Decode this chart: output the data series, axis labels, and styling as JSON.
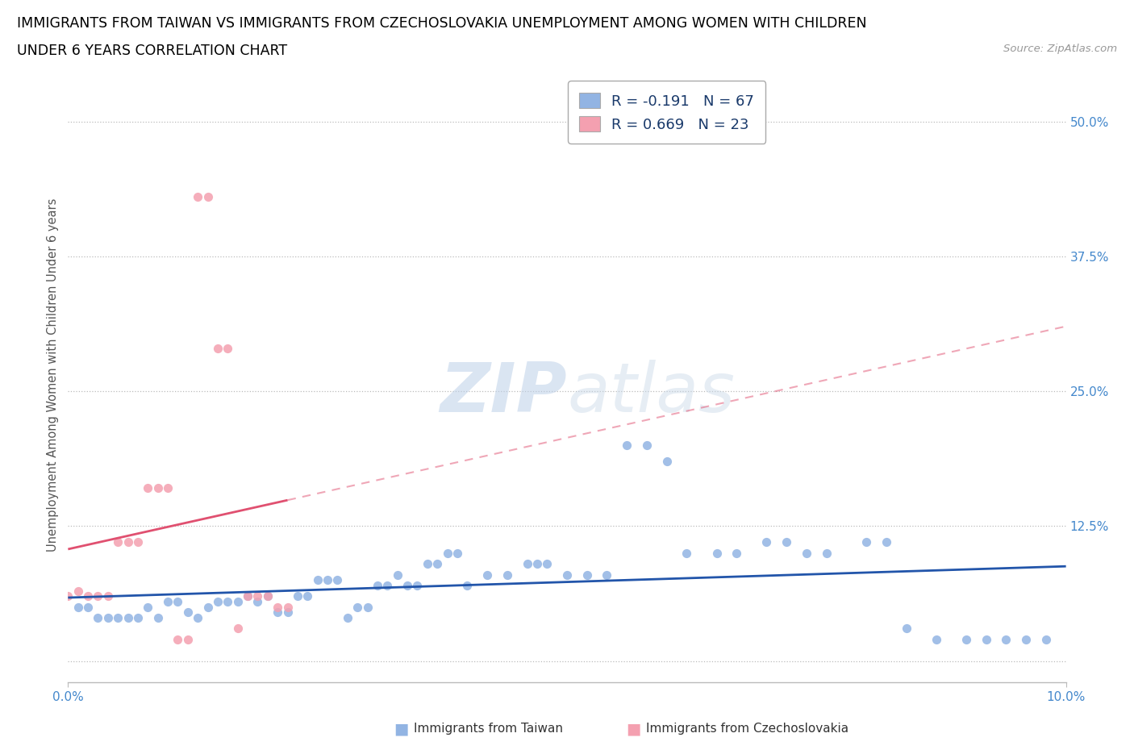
{
  "title_line1": "IMMIGRANTS FROM TAIWAN VS IMMIGRANTS FROM CZECHOSLOVAKIA UNEMPLOYMENT AMONG WOMEN WITH CHILDREN",
  "title_line2": "UNDER 6 YEARS CORRELATION CHART",
  "source": "Source: ZipAtlas.com",
  "ylabel": "Unemployment Among Women with Children Under 6 years",
  "xlim": [
    0.0,
    0.1
  ],
  "ylim": [
    -0.02,
    0.55
  ],
  "yticks": [
    0.0,
    0.125,
    0.25,
    0.375,
    0.5
  ],
  "ytick_labels": [
    "",
    "12.5%",
    "25.0%",
    "37.5%",
    "50.0%"
  ],
  "xtick_vals": [
    0.0,
    0.1
  ],
  "xtick_labels": [
    "0.0%",
    "10.0%"
  ],
  "taiwan_R": -0.191,
  "taiwan_N": 67,
  "czech_R": 0.669,
  "czech_N": 23,
  "taiwan_color": "#92b4e3",
  "czech_color": "#f4a0b0",
  "taiwan_line_color": "#2255aa",
  "czech_line_color": "#e05070",
  "taiwan_x": [
    0.001,
    0.002,
    0.003,
    0.004,
    0.005,
    0.006,
    0.007,
    0.008,
    0.009,
    0.01,
    0.011,
    0.012,
    0.013,
    0.014,
    0.015,
    0.016,
    0.017,
    0.018,
    0.019,
    0.02,
    0.021,
    0.022,
    0.023,
    0.024,
    0.025,
    0.026,
    0.027,
    0.028,
    0.029,
    0.03,
    0.031,
    0.032,
    0.033,
    0.034,
    0.035,
    0.036,
    0.037,
    0.038,
    0.039,
    0.04,
    0.042,
    0.044,
    0.046,
    0.047,
    0.048,
    0.05,
    0.052,
    0.054,
    0.056,
    0.058,
    0.06,
    0.062,
    0.065,
    0.067,
    0.07,
    0.072,
    0.074,
    0.076,
    0.08,
    0.082,
    0.084,
    0.087,
    0.09,
    0.092,
    0.094,
    0.096,
    0.098
  ],
  "taiwan_y": [
    0.05,
    0.05,
    0.04,
    0.04,
    0.04,
    0.04,
    0.04,
    0.05,
    0.04,
    0.055,
    0.055,
    0.045,
    0.04,
    0.05,
    0.055,
    0.055,
    0.055,
    0.06,
    0.055,
    0.06,
    0.045,
    0.045,
    0.06,
    0.06,
    0.075,
    0.075,
    0.075,
    0.04,
    0.05,
    0.05,
    0.07,
    0.07,
    0.08,
    0.07,
    0.07,
    0.09,
    0.09,
    0.1,
    0.1,
    0.07,
    0.08,
    0.08,
    0.09,
    0.09,
    0.09,
    0.08,
    0.08,
    0.08,
    0.2,
    0.2,
    0.185,
    0.1,
    0.1,
    0.1,
    0.11,
    0.11,
    0.1,
    0.1,
    0.11,
    0.11,
    0.03,
    0.02,
    0.02,
    0.02,
    0.02,
    0.02,
    0.02
  ],
  "czech_x": [
    0.0,
    0.001,
    0.002,
    0.003,
    0.004,
    0.005,
    0.006,
    0.007,
    0.008,
    0.009,
    0.01,
    0.011,
    0.012,
    0.013,
    0.014,
    0.015,
    0.016,
    0.017,
    0.018,
    0.019,
    0.02,
    0.021,
    0.022
  ],
  "czech_y": [
    0.06,
    0.065,
    0.06,
    0.06,
    0.06,
    0.11,
    0.11,
    0.11,
    0.16,
    0.16,
    0.16,
    0.02,
    0.02,
    0.43,
    0.43,
    0.29,
    0.29,
    0.03,
    0.06,
    0.06,
    0.06,
    0.05,
    0.05
  ],
  "bottom_legend_taiwan": "Immigrants from Taiwan",
  "bottom_legend_czech": "Immigrants from Czechoslovakia"
}
